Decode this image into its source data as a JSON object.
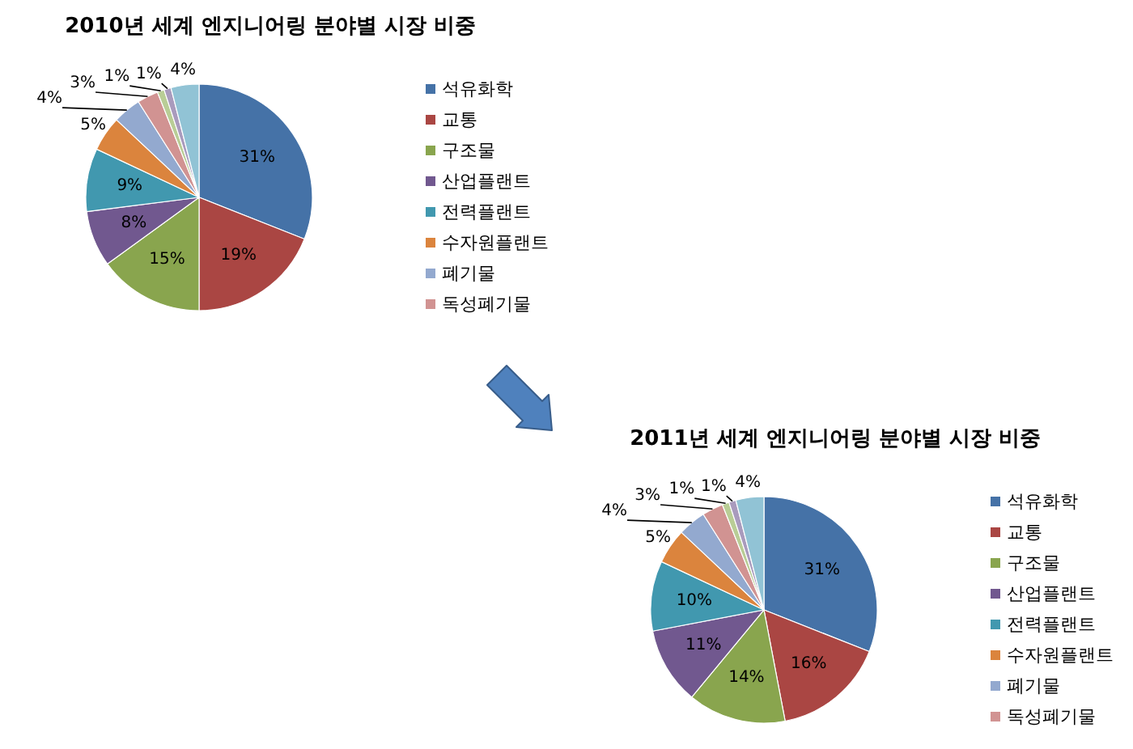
{
  "chart_data": [
    {
      "type": "pie",
      "title": "2010년 세계 엔지니어링 분야별 시장 비중",
      "categories": [
        "석유화학",
        "교통",
        "구조물",
        "산업플랜트",
        "전력플랜트",
        "수자원플랜트",
        "폐기물",
        "독성폐기물",
        null,
        null,
        null
      ],
      "values": [
        31,
        19,
        15,
        8,
        9,
        5,
        4,
        3,
        1,
        1,
        4
      ],
      "colors": [
        "#4572a7",
        "#aa4643",
        "#89a54e",
        "#71588f",
        "#4198af",
        "#db843d",
        "#93a9cf",
        "#d19392",
        "#b9cd96",
        "#a99bbd",
        "#91c3d5"
      ],
      "value_labels": [
        "31%",
        "19%",
        "15%",
        "8%",
        "9%",
        "5%",
        "4%",
        "3%",
        "1%",
        "1%",
        "4%"
      ],
      "legend": "right"
    },
    {
      "type": "pie",
      "title": "2011년 세계 엔지니어링 분야별 시장 비중",
      "categories": [
        "석유화학",
        "교통",
        "구조물",
        "산업플랜트",
        "전력플랜트",
        "수자원플랜트",
        "폐기물",
        "독성폐기물",
        null,
        null,
        null
      ],
      "values": [
        31,
        16,
        14,
        11,
        10,
        5,
        4,
        3,
        1,
        1,
        4
      ],
      "colors": [
        "#4572a7",
        "#aa4643",
        "#89a54e",
        "#71588f",
        "#4198af",
        "#db843d",
        "#93a9cf",
        "#d19392",
        "#b9cd96",
        "#a99bbd",
        "#91c3d5"
      ],
      "value_labels": [
        "31%",
        "16%",
        "14%",
        "11%",
        "10%",
        "5%",
        "4%",
        "3%",
        "1%",
        "1%",
        "4%"
      ],
      "legend": "right"
    }
  ]
}
